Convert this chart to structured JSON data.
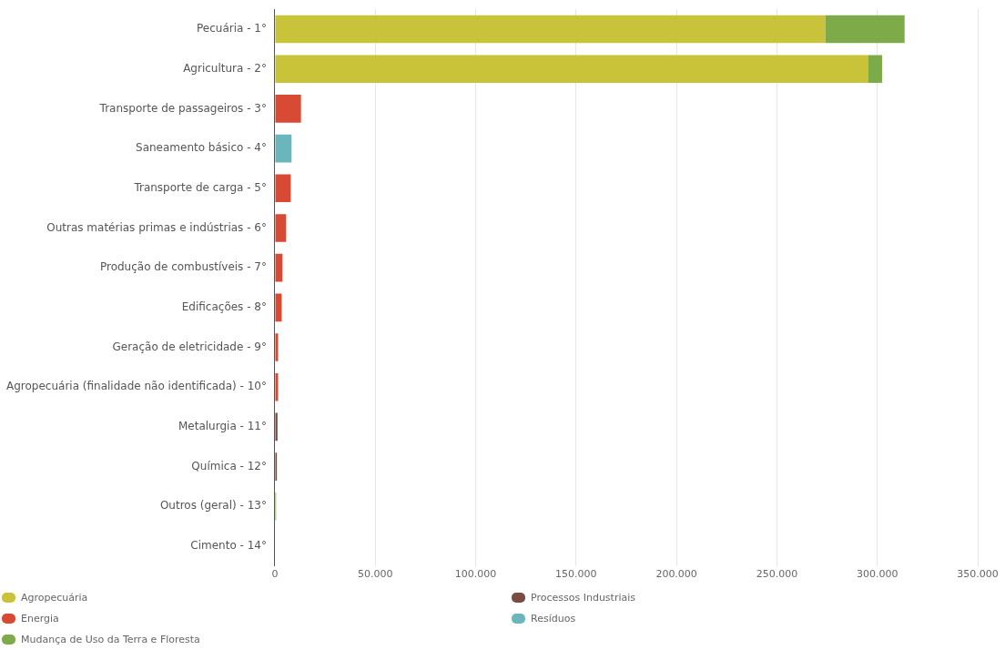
{
  "chart_data": {
    "type": "bar",
    "orientation": "horizontal",
    "stacked": true,
    "categories": [
      "Pecuária - 1°",
      "Agricultura - 2°",
      "Transporte de passageiros - 3°",
      "Saneamento básico - 4°",
      "Transporte de carga - 5°",
      "Outras matérias primas e indústrias - 6°",
      "Produção de combustíveis - 7°",
      "Edificações - 8°",
      "Geração de eletricidade - 9°",
      "Agropecuária (finalidade não identificada) - 10°",
      "Metalurgia - 11°",
      "Química - 12°",
      "Outros (geral) - 13°",
      "Cimento - 14°"
    ],
    "series": [
      {
        "name": "Agropecuária",
        "color": "#c9c33a",
        "values": [
          274000,
          295600,
          null,
          null,
          null,
          null,
          null,
          null,
          null,
          null,
          null,
          null,
          null,
          null
        ]
      },
      {
        "name": "Energia",
        "color": "#d94a34",
        "values": [
          null,
          null,
          13000,
          null,
          7900,
          5600,
          3800,
          3400,
          1600,
          1600,
          null,
          null,
          null,
          null
        ]
      },
      {
        "name": "Mudança de Uso da Terra e Floresta",
        "color": "#7eab4a",
        "values": [
          39600,
          6800,
          null,
          null,
          null,
          null,
          null,
          null,
          null,
          null,
          null,
          null,
          600,
          null
        ]
      },
      {
        "name": "Processos Industriais",
        "color": "#7a4c42",
        "values": [
          null,
          null,
          null,
          null,
          null,
          null,
          null,
          null,
          null,
          null,
          1300,
          1000,
          null,
          null
        ]
      },
      {
        "name": "Resíduos",
        "color": "#6bb5bd",
        "values": [
          null,
          null,
          null,
          8300,
          null,
          null,
          null,
          null,
          null,
          null,
          null,
          null,
          null,
          null
        ]
      }
    ],
    "xlim": [
      0,
      350000
    ],
    "xticks": [
      0,
      {
        "value": 50000,
        "label": "50.000"
      },
      {
        "value": 100000,
        "label": "100.000"
      },
      {
        "value": 150000,
        "label": "150.000"
      },
      {
        "value": 200000,
        "label": "200.000"
      },
      {
        "value": 250000,
        "label": "250.000"
      },
      {
        "value": 300000,
        "label": "300.000"
      },
      {
        "value": 350000,
        "label": "350.000"
      }
    ],
    "grid": "x",
    "legend": "bottom"
  }
}
